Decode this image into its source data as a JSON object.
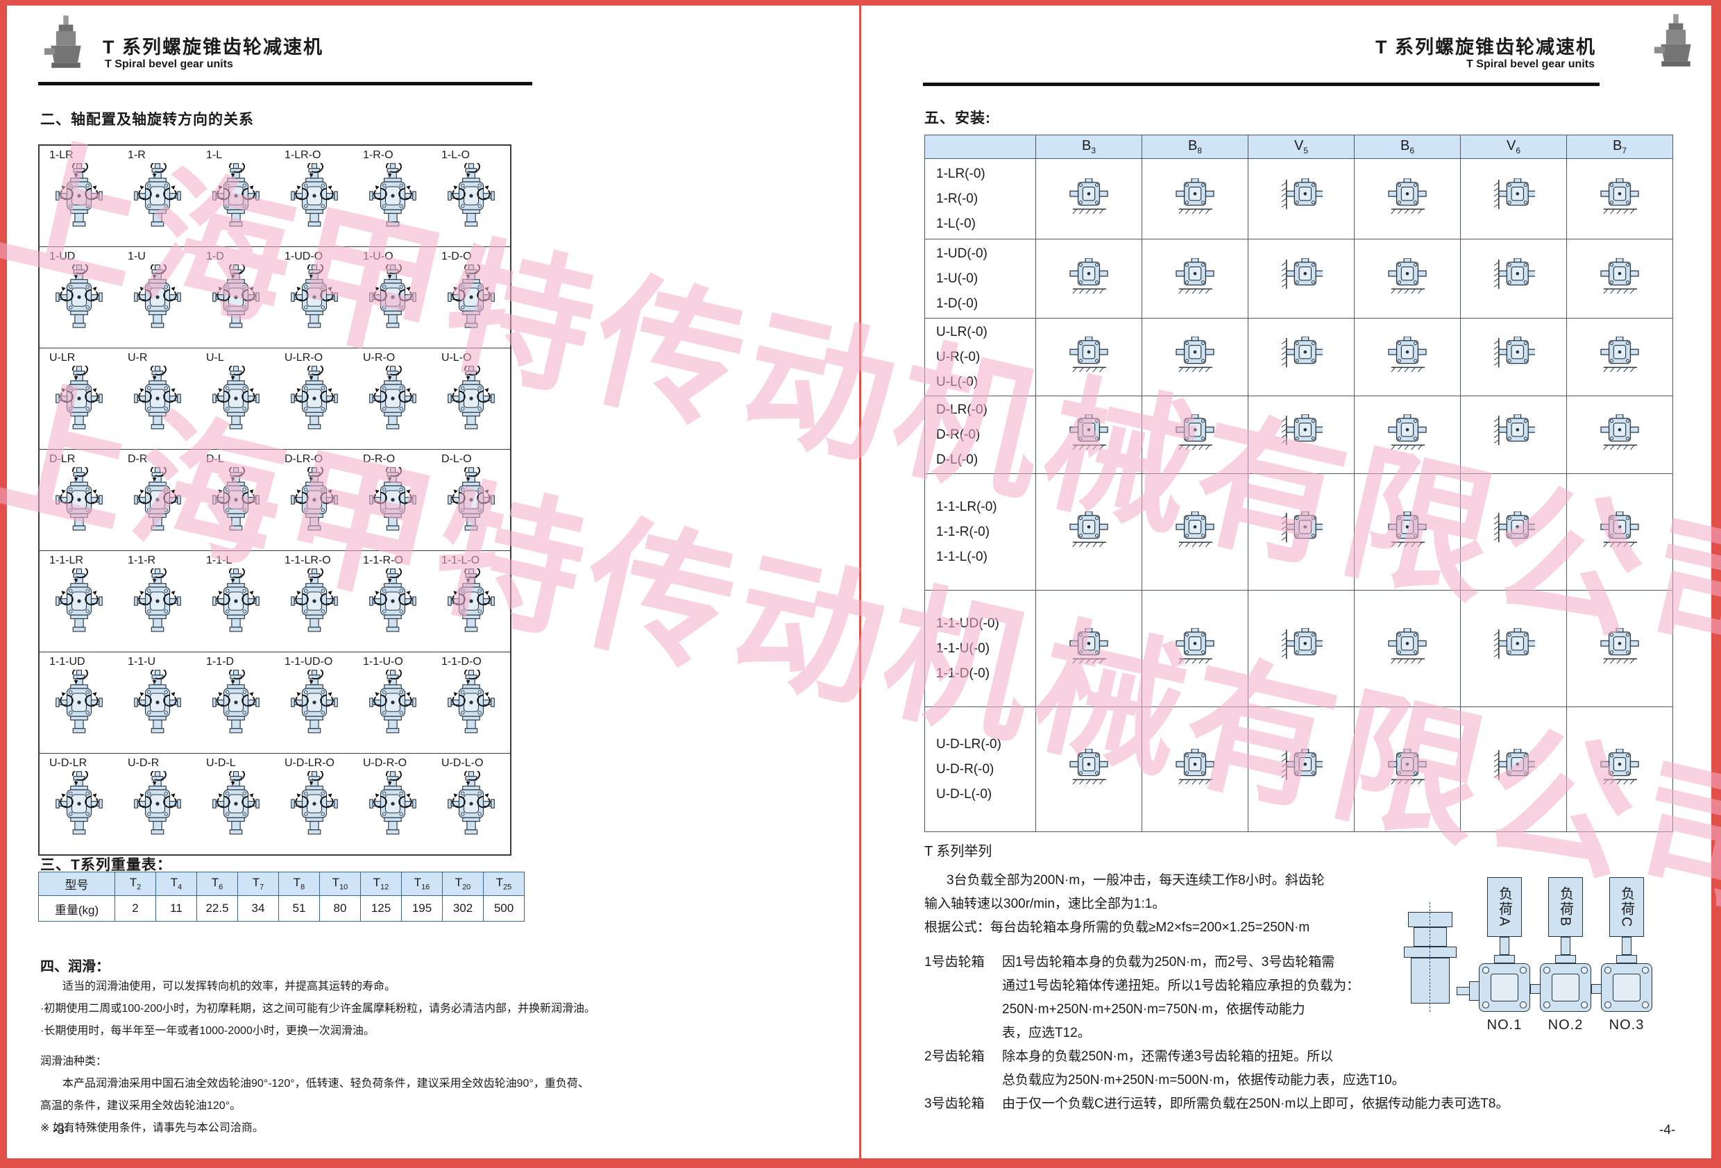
{
  "brand": {
    "title_zh": "T 系列螺旋锥齿轮减速机",
    "title_en": "T Spiral bevel gear units"
  },
  "watermark": {
    "text": "上海甲特传动机械有限公司"
  },
  "colors": {
    "frame": "#e14f49",
    "table_header": "#cfe4f6",
    "diagram_fill": "#cfe2f1",
    "watermark": "#f4afca"
  },
  "page_left": {
    "page_number": "-3-",
    "section_axis": {
      "title": "二、轴配置及轴旋转方向的关系",
      "rows": [
        [
          "1-LR",
          "1-R",
          "1-L",
          "1-LR-O",
          "1-R-O",
          "1-L-O"
        ],
        [
          "1-UD",
          "1-U",
          "1-D",
          "1-UD-O",
          "1-U-O",
          "1-D-O"
        ],
        [
          "U-LR",
          "U-R",
          "U-L",
          "U-LR-O",
          "U-R-O",
          "U-L-O"
        ],
        [
          "D-LR",
          "D-R",
          "D-L",
          "D-LR-O",
          "D-R-O",
          "D-L-O"
        ],
        [
          "1-1-LR",
          "1-1-R",
          "1-1-L",
          "1-1-LR-O",
          "1-1-R-O",
          "1-1-L-O"
        ],
        [
          "1-1-UD",
          "1-1-U",
          "1-1-D",
          "1-1-UD-O",
          "1-1-U-O",
          "1-1-D-O"
        ],
        [
          "U-D-LR",
          "U-D-R",
          "U-D-L",
          "U-D-LR-O",
          "U-D-R-O",
          "U-D-L-O"
        ]
      ]
    },
    "section_weight": {
      "title": "三、T系列重量表：",
      "model_label": "型号",
      "weight_label": "重量(kg)",
      "models": [
        "T2",
        "T4",
        "T6",
        "T7",
        "T8",
        "T10",
        "T12",
        "T16",
        "T20",
        "T25"
      ],
      "weights": [
        "2",
        "11",
        "22.5",
        "34",
        "51",
        "80",
        "125",
        "195",
        "302",
        "500"
      ]
    },
    "section_lube": {
      "title": "四、润滑：",
      "lines": [
        "适当的润滑油使用，可以发挥转向机的效率，并提高其运转的寿命。",
        "·初期使用二周或100-200小时，为初摩耗期，这之间可能有少许金属摩耗粉粒，请务必清洁内部，并换新润滑油。",
        "·长期使用时，每半年至一年或者1000-2000小时，更换一次润滑油。"
      ],
      "type_title": "润滑油种类：",
      "type_lines": [
        "本产品润滑油采用中国石油全效齿轮油90°-120°，低转速、轻负荷条件，建议采用全效齿轮油90°，重负荷、",
        "高温的条件，建议采用全效齿轮油120°。",
        "※ 如有特殊使用条件，请事先与本公司洽商。"
      ]
    }
  },
  "page_right": {
    "page_number": "-4-",
    "section_install": {
      "title": "五、安装:",
      "columns": [
        "B3",
        "B8",
        "V5",
        "B6",
        "V6",
        "B7"
      ],
      "rows": [
        [
          "1-LR(-0)",
          "1-R(-0)",
          "1-L(-0)"
        ],
        [
          "1-UD(-0)",
          "1-U(-0)",
          "1-D(-0)"
        ],
        [
          "U-LR(-0)",
          "U-R(-0)",
          "U-L(-0)"
        ],
        [
          "D-LR(-0)",
          "D-R(-0)",
          "D-L(-0)"
        ],
        [
          "1-1-LR(-0)",
          "1-1-R(-0)",
          "1-1-L(-0)"
        ],
        [
          "1-1-UD(-0)",
          "1-1-U(-0)",
          "1-1-D(-0)"
        ],
        [
          "U-D-LR(-0)",
          "U-D-R(-0)",
          "U-D-L(-0)"
        ]
      ]
    },
    "section_example": {
      "title": "T 系列举列",
      "intro_lines": [
        "3台负载全部为200N·m，一般冲击，每天连续工作8小时。斜齿轮",
        "输入轴转速以300r/min，速比全部为1:1。",
        "根据公式：每台齿轮箱本身所需的负载≥M2×fs=200×1.25=250N·m"
      ],
      "items": [
        {
          "label": "1号齿轮箱",
          "lines": [
            "因1号齿轮箱本身的负载为250N·m，而2号、3号齿轮箱需",
            "通过1号齿轮箱体传递扭矩。所以1号齿轮箱应承担的负载为：",
            "250N·m+250N·m+250N·m=750N·m，依据传动能力",
            "表，应选T12。"
          ]
        },
        {
          "label": "2号齿轮箱",
          "lines": [
            "除本身的负载250N·m，还需传递3号齿轮箱的扭矩。所以",
            "总负载应为250N·m+250N·m=500N·m，依据传动能力表，应选T10。"
          ]
        },
        {
          "label": "3号齿轮箱",
          "lines": [
            "由于仅一个负载C进行运转，即所需负载在250N·m以上即可，依据传动能力表可选T8。"
          ]
        }
      ],
      "diagram": {
        "loads": [
          "负荷A",
          "负荷B",
          "负荷C"
        ],
        "units": [
          "NO.1",
          "NO.2",
          "NO.3"
        ]
      }
    }
  }
}
